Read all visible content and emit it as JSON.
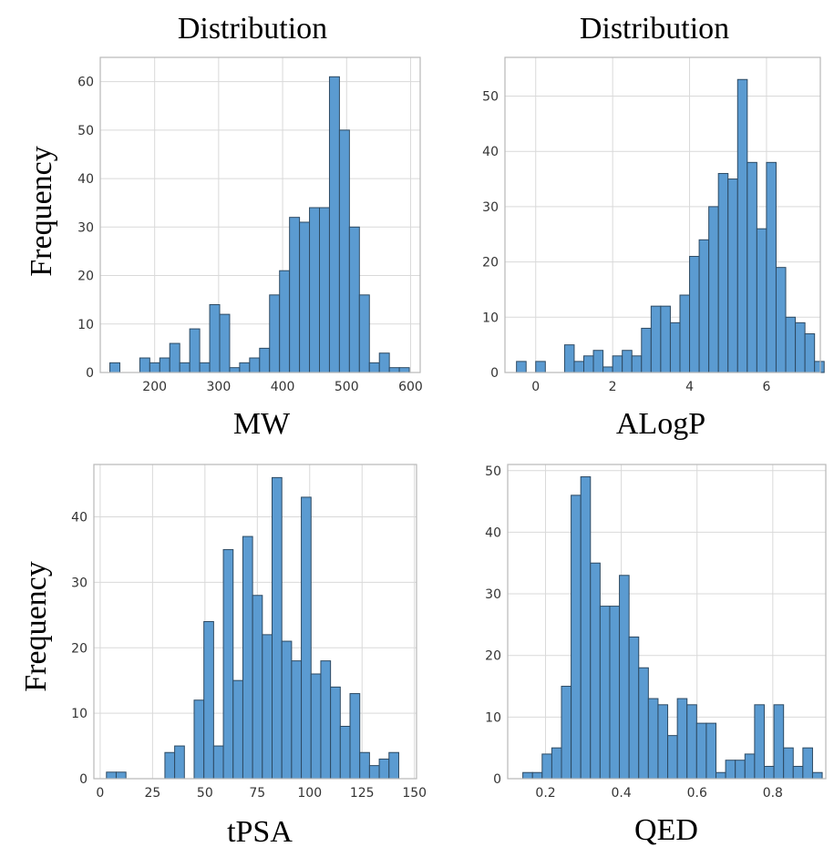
{
  "colors": {
    "bar_fill": "#5b9bd1",
    "bar_edge": "#2d4a63",
    "grid": "#d9d9d9",
    "frame": "#b8b8b8"
  },
  "chart_data": [
    {
      "type": "bar",
      "title": "Distribution",
      "xlabel": "MW",
      "ylabel": "Frequency",
      "xlim": [
        115,
        615
      ],
      "ylim": [
        0,
        65
      ],
      "xticks": [
        200,
        300,
        400,
        500,
        600
      ],
      "yticks": [
        0,
        10,
        20,
        30,
        40,
        50,
        60
      ],
      "bin_start": 130,
      "bin_width": 15.6,
      "values": [
        2,
        0,
        0,
        3,
        2,
        3,
        6,
        2,
        9,
        2,
        14,
        12,
        1,
        2,
        3,
        5,
        16,
        21,
        32,
        31,
        34,
        34,
        61,
        50,
        30,
        16,
        2,
        4,
        1,
        1
      ],
      "grid": true
    },
    {
      "type": "bar",
      "title": "Distribution",
      "xlabel": "ALogP",
      "ylabel": "",
      "xlim": [
        -0.8,
        7.4
      ],
      "ylim": [
        0,
        57
      ],
      "xticks": [
        0,
        2,
        4,
        6
      ],
      "yticks": [
        0,
        10,
        20,
        30,
        40,
        50
      ],
      "bin_start": -0.5,
      "bin_width": 0.25,
      "values": [
        2,
        0,
        2,
        0,
        0,
        5,
        2,
        3,
        4,
        1,
        3,
        4,
        3,
        8,
        12,
        12,
        9,
        14,
        21,
        24,
        30,
        36,
        35,
        53,
        38,
        26,
        38,
        19,
        10,
        9,
        7,
        2
      ],
      "grid": true
    },
    {
      "type": "bar",
      "title": "",
      "xlabel": "tPSA",
      "ylabel": "Frequency",
      "xlim": [
        -3,
        151
      ],
      "ylim": [
        0,
        48
      ],
      "xticks": [
        0,
        25,
        50,
        75,
        100,
        125,
        150
      ],
      "yticks": [
        0,
        10,
        20,
        30,
        40
      ],
      "bin_start": 3,
      "bin_width": 4.65,
      "values": [
        1,
        1,
        0,
        0,
        0,
        0,
        4,
        5,
        0,
        12,
        24,
        5,
        35,
        15,
        37,
        28,
        22,
        46,
        21,
        18,
        43,
        16,
        18,
        14,
        8,
        13,
        4,
        2,
        3,
        4
      ],
      "grid": true
    },
    {
      "type": "bar",
      "title": "",
      "xlabel": "QED",
      "ylabel": "",
      "xlim": [
        0.1,
        0.94
      ],
      "ylim": [
        0,
        51
      ],
      "xticks": [
        0.2,
        0.4,
        0.6,
        0.8
      ],
      "yticks": [
        0,
        10,
        20,
        30,
        40,
        50
      ],
      "bin_start": 0.14,
      "bin_width": 0.0255,
      "values": [
        1,
        1,
        4,
        5,
        15,
        46,
        49,
        35,
        28,
        28,
        33,
        23,
        18,
        13,
        12,
        7,
        13,
        12,
        9,
        9,
        1,
        3,
        3,
        4,
        12,
        2,
        12,
        5,
        2,
        5,
        1
      ],
      "grid": true
    }
  ]
}
